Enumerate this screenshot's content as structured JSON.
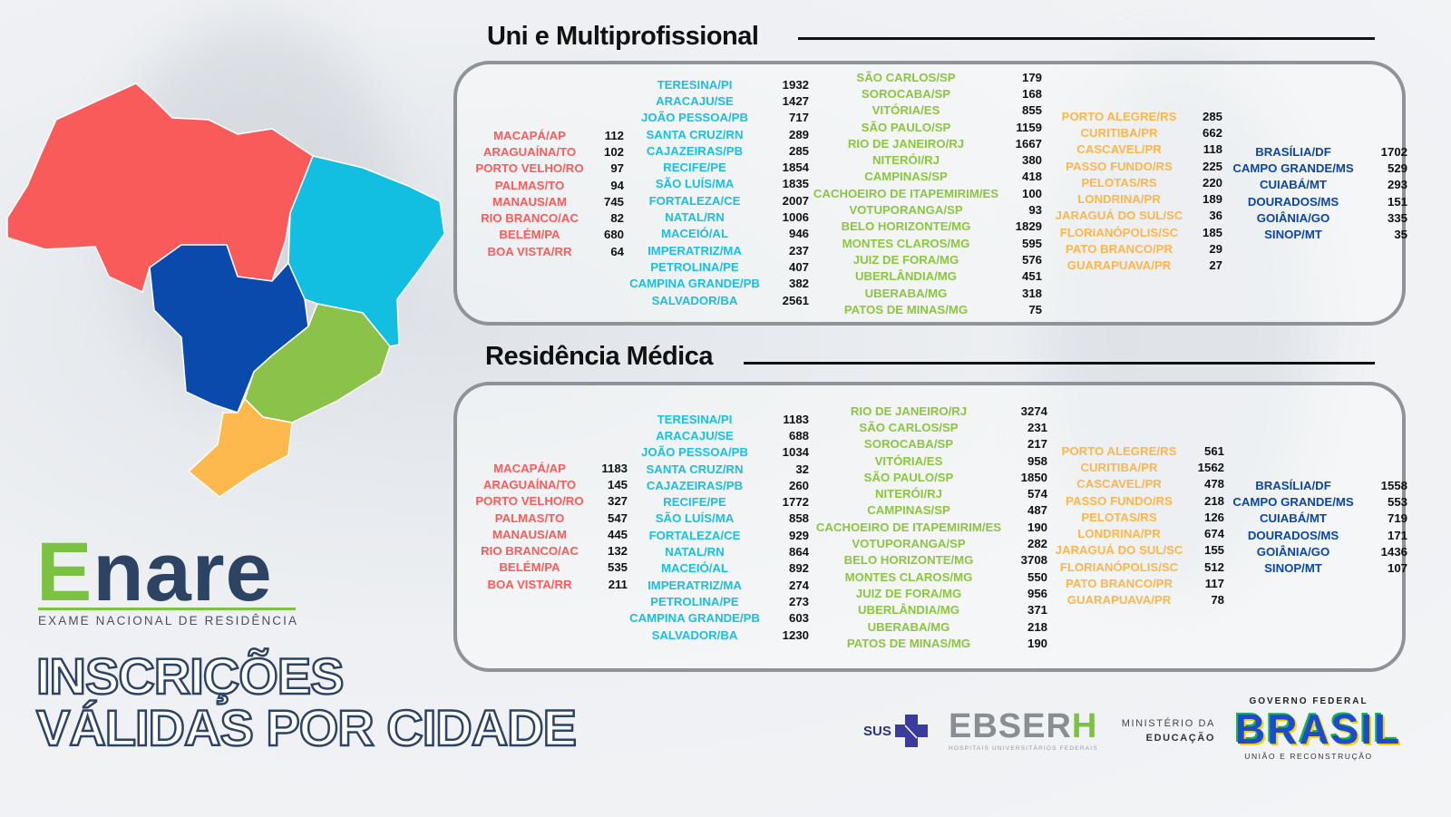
{
  "sections": [
    {
      "title": "Uni e Multiprofissional",
      "columns": [
        {
          "color": "red",
          "rows": [
            [
              "MACAPÁ/AP",
              "112"
            ],
            [
              "ARAGUAÍNA/TO",
              "102"
            ],
            [
              "PORTO VELHO/RO",
              "97"
            ],
            [
              "PALMAS/TO",
              "94"
            ],
            [
              "MANAUS/AM",
              "745"
            ],
            [
              "RIO BRANCO/AC",
              "82"
            ],
            [
              "BELÉM/PA",
              "680"
            ],
            [
              "BOA VISTA/RR",
              "64"
            ]
          ]
        },
        {
          "color": "cyan",
          "rows": [
            [
              "TERESINA/PI",
              "1932"
            ],
            [
              "ARACAJU/SE",
              "1427"
            ],
            [
              "JOÃO PESSOA/PB",
              "717"
            ],
            [
              "SANTA CRUZ/RN",
              "289"
            ],
            [
              "CAJAZEIRAS/PB",
              "285"
            ],
            [
              "RECIFE/PE",
              "1854"
            ],
            [
              "SÃO LUÍS/MA",
              "1835"
            ],
            [
              "FORTALEZA/CE",
              "2007"
            ],
            [
              "NATAL/RN",
              "1006"
            ],
            [
              "MACEIÓ/AL",
              "946"
            ],
            [
              "IMPERATRIZ/MA",
              "237"
            ],
            [
              "PETROLINA/PE",
              "407"
            ],
            [
              "CAMPINA GRANDE/PB",
              "382"
            ],
            [
              "SALVADOR/BA",
              "2561"
            ]
          ]
        },
        {
          "color": "green",
          "rows": [
            [
              "SÃO CARLOS/SP",
              "179"
            ],
            [
              "SOROCABA/SP",
              "168"
            ],
            [
              "VITÓRIA/ES",
              "855"
            ],
            [
              "SÃO PAULO/SP",
              "1159"
            ],
            [
              "RIO DE JANEIRO/RJ",
              "1667"
            ],
            [
              "NITERÓI/RJ",
              "380"
            ],
            [
              "CAMPINAS/SP",
              "418"
            ],
            [
              "CACHOEIRO DE ITAPEMIRIM/ES",
              "100"
            ],
            [
              "VOTUPORANGA/SP",
              "93"
            ],
            [
              "BELO HORIZONTE/MG",
              "1829"
            ],
            [
              "MONTES CLAROS/MG",
              "595"
            ],
            [
              "JUIZ DE FORA/MG",
              "576"
            ],
            [
              "UBERLÂNDIA/MG",
              "451"
            ],
            [
              "UBERABA/MG",
              "318"
            ],
            [
              "PATOS DE MINAS/MG",
              "75"
            ]
          ]
        },
        {
          "color": "orange",
          "rows": [
            [
              "PORTO ALEGRE/RS",
              "285"
            ],
            [
              "CURITIBA/PR",
              "662"
            ],
            [
              "CASCAVEL/PR",
              "118"
            ],
            [
              "PASSO FUNDO/RS",
              "225"
            ],
            [
              "PELOTAS/RS",
              "220"
            ],
            [
              "LONDRINA/PR",
              "189"
            ],
            [
              "JARAGUÁ DO SUL/SC",
              "36"
            ],
            [
              "FLORIANÓPOLIS/SC",
              "185"
            ],
            [
              "PATO BRANCO/PR",
              "29"
            ],
            [
              "GUARAPUAVA/PR",
              "27"
            ]
          ]
        },
        {
          "color": "blue",
          "rows": [
            [
              "BRASÍLIA/DF",
              "1702"
            ],
            [
              "CAMPO GRANDE/MS",
              "529"
            ],
            [
              "CUIABÁ/MT",
              "293"
            ],
            [
              "DOURADOS/MS",
              "151"
            ],
            [
              "GOIÂNIA/GO",
              "335"
            ],
            [
              "SINOP/MT",
              "35"
            ]
          ]
        }
      ]
    },
    {
      "title": "Residência Médica",
      "columns": [
        {
          "color": "red",
          "rows": [
            [
              "MACAPÁ/AP",
              "1183"
            ],
            [
              "ARAGUAÍNA/TO",
              "145"
            ],
            [
              "PORTO VELHO/RO",
              "327"
            ],
            [
              "PALMAS/TO",
              "547"
            ],
            [
              "MANAUS/AM",
              "445"
            ],
            [
              "RIO BRANCO/AC",
              "132"
            ],
            [
              "BELÉM/PA",
              "535"
            ],
            [
              "BOA VISTA/RR",
              "211"
            ]
          ]
        },
        {
          "color": "cyan",
          "rows": [
            [
              "TERESINA/PI",
              "1183"
            ],
            [
              "ARACAJU/SE",
              "688"
            ],
            [
              "JOÃO PESSOA/PB",
              "1034"
            ],
            [
              "SANTA CRUZ/RN",
              "32"
            ],
            [
              "CAJAZEIRAS/PB",
              "260"
            ],
            [
              "RECIFE/PE",
              "1772"
            ],
            [
              "SÃO LUÍS/MA",
              "858"
            ],
            [
              "FORTALEZA/CE",
              "929"
            ],
            [
              "NATAL/RN",
              "864"
            ],
            [
              "MACEIÓ/AL",
              "892"
            ],
            [
              "IMPERATRIZ/MA",
              "274"
            ],
            [
              "PETROLINA/PE",
              "273"
            ],
            [
              "CAMPINA GRANDE/PB",
              "603"
            ],
            [
              "SALVADOR/BA",
              "1230"
            ]
          ]
        },
        {
          "color": "green",
          "rows": [
            [
              "RIO DE JANEIRO/RJ",
              "3274"
            ],
            [
              "SÃO CARLOS/SP",
              "231"
            ],
            [
              "SOROCABA/SP",
              "217"
            ],
            [
              "VITÓRIA/ES",
              "958"
            ],
            [
              "SÃO PAULO/SP",
              "1850"
            ],
            [
              "NITERÓI/RJ",
              "574"
            ],
            [
              "CAMPINAS/SP",
              "487"
            ],
            [
              "CACHOEIRO DE ITAPEMIRIM/ES",
              "190"
            ],
            [
              "VOTUPORANGA/SP",
              "282"
            ],
            [
              "BELO HORIZONTE/MG",
              "3708"
            ],
            [
              "MONTES CLAROS/MG",
              "550"
            ],
            [
              "JUIZ DE FORA/MG",
              "956"
            ],
            [
              "UBERLÂNDIA/MG",
              "371"
            ],
            [
              "UBERABA/MG",
              "218"
            ],
            [
              "PATOS DE MINAS/MG",
              "190"
            ]
          ]
        },
        {
          "color": "orange",
          "rows": [
            [
              "PORTO ALEGRE/RS",
              "561"
            ],
            [
              "CURITIBA/PR",
              "1562"
            ],
            [
              "CASCAVEL/PR",
              "478"
            ],
            [
              "PASSO FUNDO/RS",
              "218"
            ],
            [
              "PELOTAS/RS",
              "126"
            ],
            [
              "LONDRINA/PR",
              "674"
            ],
            [
              "JARAGUÁ DO SUL/SC",
              "155"
            ],
            [
              "FLORIANÓPOLIS/SC",
              "512"
            ],
            [
              "PATO BRANCO/PR",
              "117"
            ],
            [
              "GUARAPUAVA/PR",
              "78"
            ]
          ]
        },
        {
          "color": "blue",
          "rows": [
            [
              "BRASÍLIA/DF",
              "1558"
            ],
            [
              "CAMPO GRANDE/MS",
              "553"
            ],
            [
              "CUIABÁ/MT",
              "719"
            ],
            [
              "DOURADOS/MS",
              "171"
            ],
            [
              "GOIÂNIA/GO",
              "1436"
            ],
            [
              "SINOP/MT",
              "107"
            ]
          ]
        }
      ]
    }
  ],
  "region_colors": {
    "north": "#f95a5a",
    "northeast": "#12bfe0",
    "center_west": "#0a4aad",
    "southeast": "#8bc34a",
    "south": "#fdb94e"
  },
  "brand": {
    "logo_e": "E",
    "logo_rest": "nare",
    "subtitle": "EXAME NACIONAL DE RESIDÊNCIA",
    "headline_1": "INSCRIÇÕES",
    "headline_2": "VÁLIDAS POR CIDADE"
  },
  "footer": {
    "sus": "SUS",
    "ebserh_main": "EBSER",
    "ebserh_h": "H",
    "ebserh_sub": "HOSPITAIS UNIVERSITÁRIOS FEDERAIS",
    "mec_1": "MINISTÉRIO DA",
    "mec_2": "EDUCAÇÃO",
    "gov_top": "GOVERNO FEDERAL",
    "gov_word": "BRASIL",
    "gov_bottom": "UNIÃO E RECONSTRUÇÃO"
  }
}
